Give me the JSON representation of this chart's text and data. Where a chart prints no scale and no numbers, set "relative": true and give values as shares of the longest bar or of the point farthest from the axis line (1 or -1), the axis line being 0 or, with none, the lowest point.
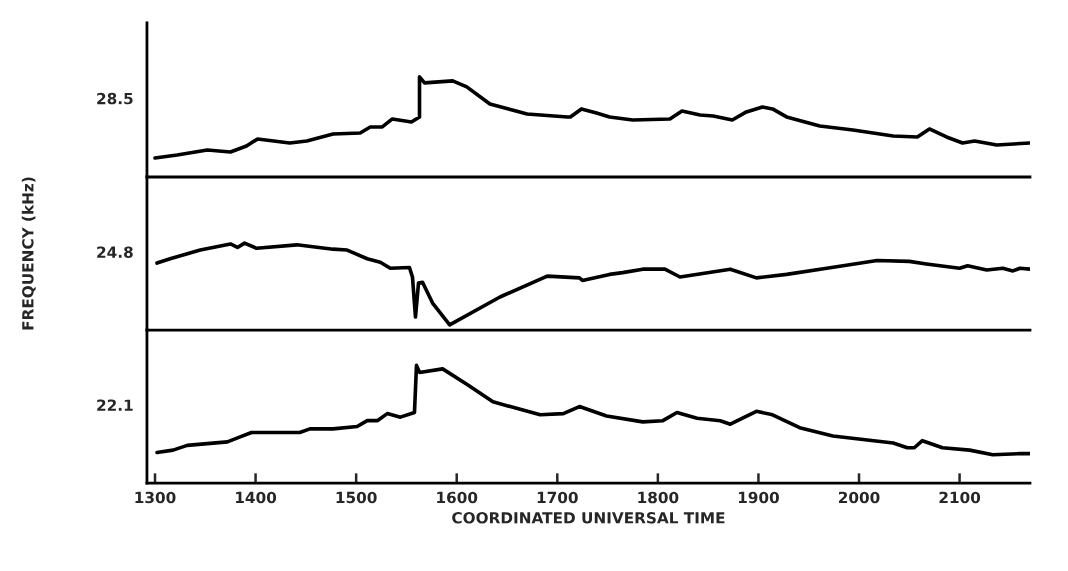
{
  "chart_data": [
    {
      "type": "line",
      "relative": true,
      "xlim": [
        1292,
        2170
      ],
      "tick_labels": false,
      "xticks": [
        1300,
        1400,
        1500,
        1600,
        1700,
        1800,
        1900,
        2000,
        2100
      ],
      "series": [
        {
          "name": "28.5",
          "color": "#000000",
          "x": [
            1300,
            1322,
            1352,
            1375,
            1391,
            1402,
            1434,
            1451,
            1477,
            1504,
            1514,
            1526,
            1536,
            1555,
            1563,
            1563,
            1568,
            1596,
            1610,
            1633,
            1670,
            1710,
            1713,
            1724,
            1739,
            1752,
            1775,
            1812,
            1824,
            1842,
            1855,
            1874,
            1888,
            1904,
            1914,
            1928,
            1961,
            1994,
            2034,
            2058,
            2070,
            2087,
            2103,
            2115,
            2137,
            2170
          ],
          "values": [
            0.19,
            0.22,
            0.27,
            0.25,
            0.31,
            0.38,
            0.34,
            0.36,
            0.43,
            0.44,
            0.5,
            0.5,
            0.58,
            0.55,
            0.6,
            1.0,
            0.94,
            0.96,
            0.9,
            0.73,
            0.63,
            0.6,
            0.6,
            0.68,
            0.64,
            0.6,
            0.57,
            0.58,
            0.66,
            0.62,
            0.61,
            0.57,
            0.65,
            0.7,
            0.68,
            0.6,
            0.51,
            0.47,
            0.41,
            0.4,
            0.48,
            0.4,
            0.34,
            0.36,
            0.32,
            0.34
          ]
        }
      ]
    },
    {
      "type": "line",
      "relative": true,
      "xlim": [
        1292,
        2170
      ],
      "tick_labels": false,
      "ylabel": "FREQUENCY (kHz)",
      "xticks": [
        1300,
        1400,
        1500,
        1600,
        1700,
        1800,
        1900,
        2000,
        2100
      ],
      "series": [
        {
          "name": "24.8",
          "color": "#000000",
          "x": [
            1302,
            1315,
            1345,
            1375,
            1382,
            1389,
            1401,
            1441,
            1477,
            1491,
            1511,
            1524,
            1534,
            1553,
            1556,
            1559,
            1562,
            1566,
            1576,
            1593,
            1643,
            1690,
            1722,
            1725,
            1752,
            1765,
            1785,
            1807,
            1822,
            1872,
            1898,
            1928,
            1968,
            2018,
            2050,
            2067,
            2100,
            2108,
            2127,
            2143,
            2153,
            2160,
            2170
          ],
          "values": [
            0.77,
            0.82,
            0.92,
            0.99,
            0.95,
            1.0,
            0.94,
            0.98,
            0.93,
            0.92,
            0.82,
            0.78,
            0.71,
            0.72,
            0.61,
            0.15,
            0.54,
            0.55,
            0.31,
            0.06,
            0.38,
            0.62,
            0.6,
            0.57,
            0.64,
            0.66,
            0.7,
            0.7,
            0.61,
            0.7,
            0.6,
            0.64,
            0.71,
            0.8,
            0.79,
            0.76,
            0.71,
            0.74,
            0.69,
            0.71,
            0.68,
            0.71,
            0.7
          ]
        }
      ]
    },
    {
      "type": "line",
      "relative": true,
      "xlim": [
        1292,
        2170
      ],
      "tick_labels": "x",
      "xlabel": "COORDINATED UNIVERSAL TIME",
      "xticks": [
        1300,
        1400,
        1500,
        1600,
        1700,
        1800,
        1900,
        2000,
        2100
      ],
      "series": [
        {
          "name": "22.1",
          "color": "#000000",
          "x": [
            1302,
            1318,
            1332,
            1372,
            1384,
            1396,
            1444,
            1454,
            1477,
            1501,
            1511,
            1521,
            1531,
            1544,
            1558,
            1560,
            1563,
            1586,
            1610,
            1636,
            1683,
            1706,
            1722,
            1749,
            1785,
            1805,
            1819,
            1839,
            1862,
            1872,
            1898,
            1914,
            1941,
            1974,
            2034,
            2048,
            2055,
            2063,
            2083,
            2110,
            2133,
            2160,
            2170
          ],
          "values": [
            0.26,
            0.28,
            0.32,
            0.35,
            0.39,
            0.43,
            0.43,
            0.46,
            0.46,
            0.48,
            0.53,
            0.53,
            0.59,
            0.56,
            0.6,
            1.0,
            0.94,
            0.97,
            0.84,
            0.69,
            0.58,
            0.59,
            0.65,
            0.57,
            0.52,
            0.53,
            0.6,
            0.55,
            0.53,
            0.5,
            0.61,
            0.58,
            0.47,
            0.4,
            0.34,
            0.3,
            0.3,
            0.36,
            0.3,
            0.28,
            0.24,
            0.25,
            0.25
          ]
        }
      ]
    }
  ]
}
